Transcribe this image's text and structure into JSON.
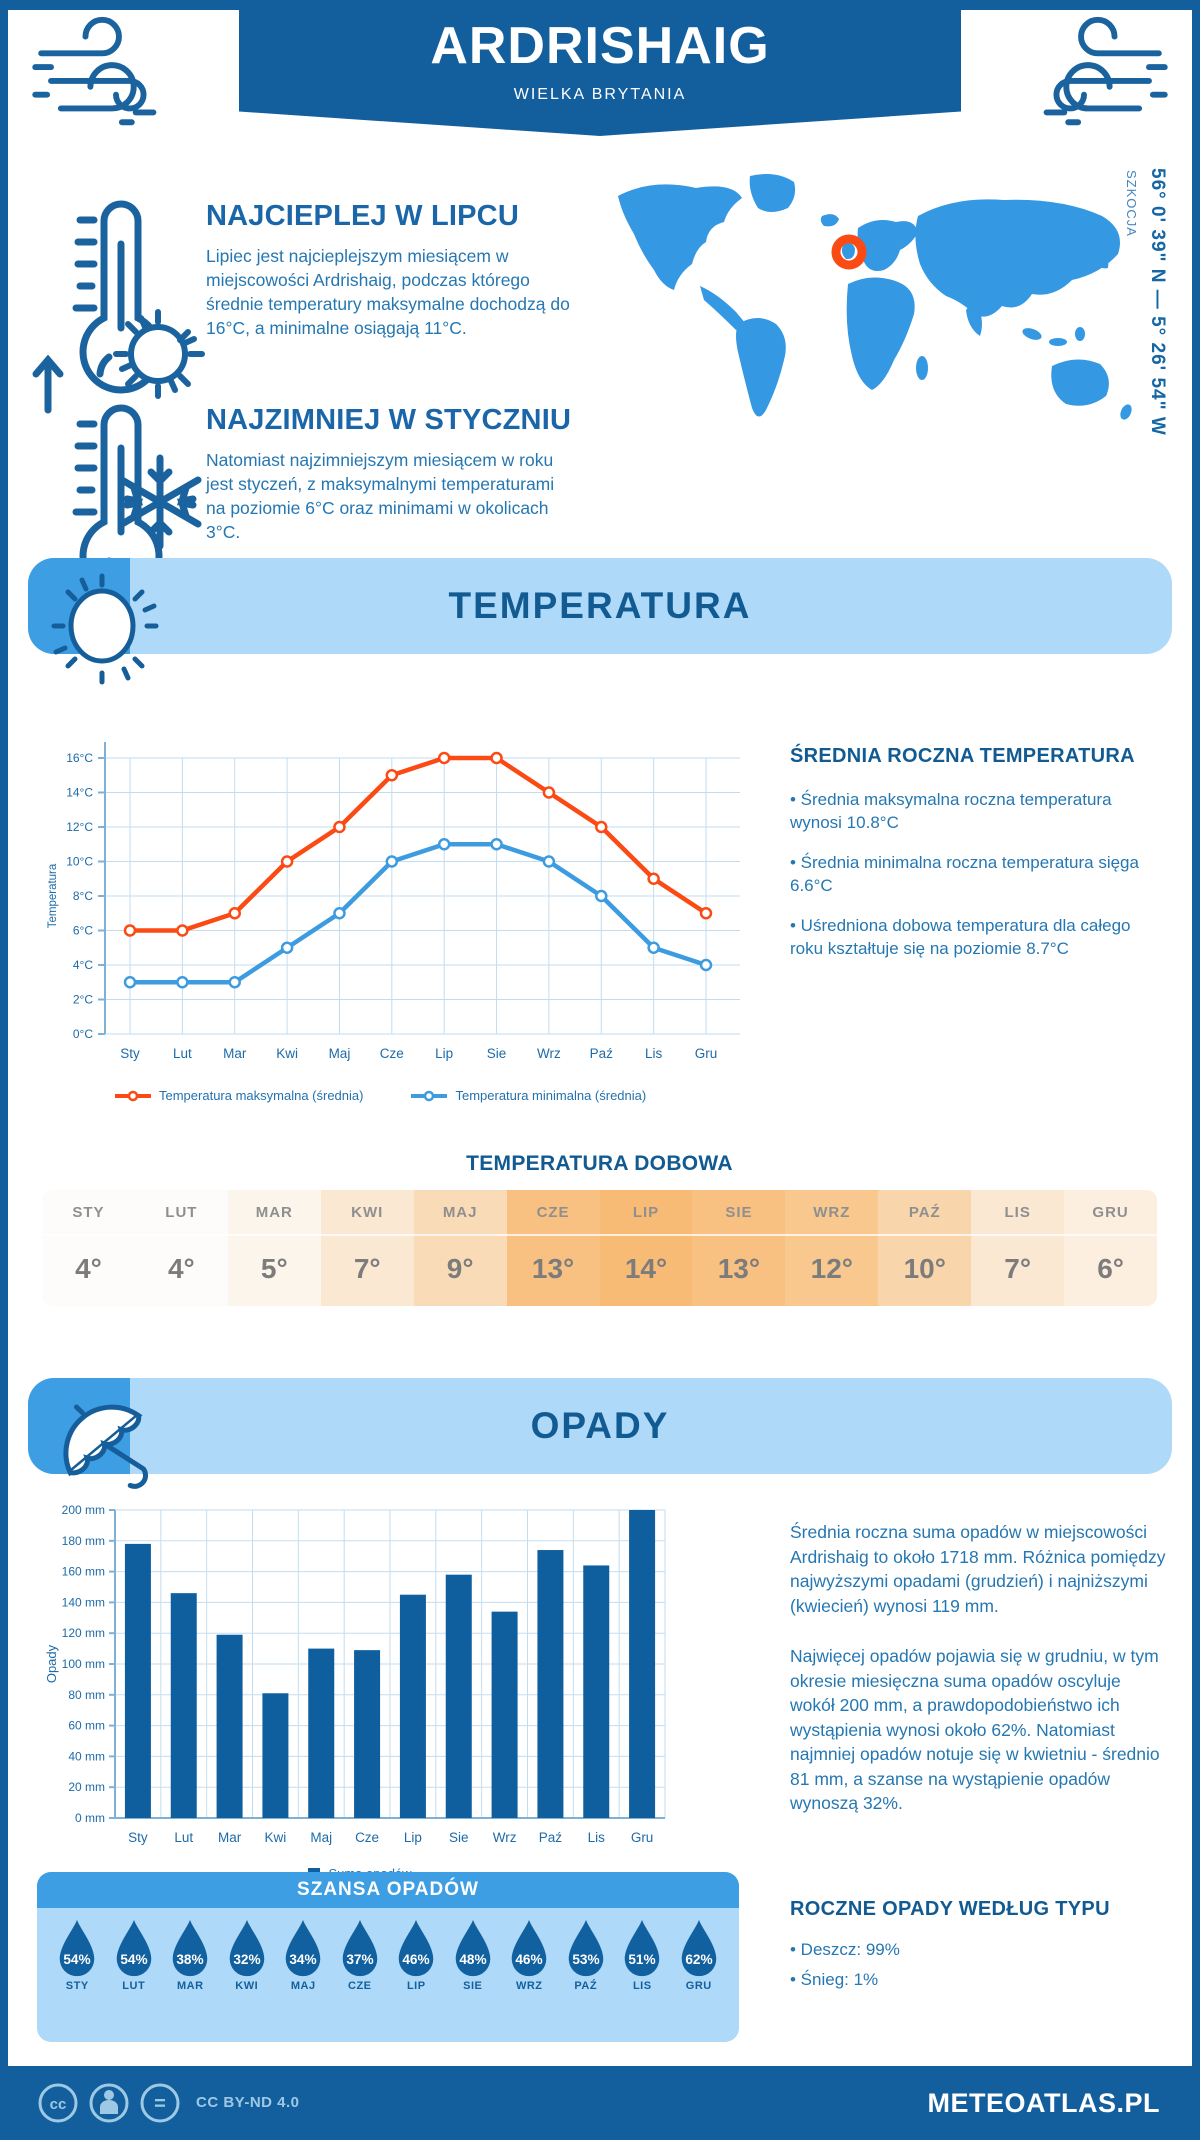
{
  "colors": {
    "primary": "#135f9e",
    "accent": "#3d9ee3",
    "light_panel": "#aed9f8",
    "orange": "#fb4a14",
    "line_max": "#fb4a14",
    "line_min": "#3d9be0",
    "bar": "#0f5f9f",
    "marker": "#fa4b14",
    "map": "#3598e3"
  },
  "header": {
    "title": "ARDRISHAIG",
    "subtitle": "WIELKA BRYTANIA"
  },
  "location": {
    "coordinates": "56° 0' 39\" N — 5° 26' 54\" W",
    "region": "SZKOCJA"
  },
  "highlights": {
    "warm": {
      "title": "NAJCIEPLEJ W LIPCU",
      "text": "Lipiec jest najcieplejszym miesiącem w miejscowości Ardrishaig, podczas którego średnie temperatury maksymalne dochodzą do 16°C, a minimalne osiągają 11°C."
    },
    "cold": {
      "title": "NAJZIMNIEJ W STYCZNIU",
      "text": "Natomiast najzimniejszym miesiącem w roku jest styczeń, z maksymalnymi temperaturami na poziomie 6°C oraz minimami w okolicach 3°C."
    }
  },
  "temperature": {
    "section_title": "TEMPERATURA",
    "annual_heading": "ŚREDNIA ROCZNA TEMPERATURA",
    "annual_bullets": [
      "• Średnia maksymalna roczna temperatura wynosi 10.8°C",
      "• Średnia minimalna roczna temperatura sięga 6.6°C",
      "• Uśredniona dobowa temperatura dla całego roku kształtuje się na poziomie 8.7°C"
    ],
    "daily_heading": "TEMPERATURA DOBOWA",
    "daily": {
      "months": [
        "STY",
        "LUT",
        "MAR",
        "KWI",
        "MAJ",
        "CZE",
        "LIP",
        "SIE",
        "WRZ",
        "PAŹ",
        "LIS",
        "GRU"
      ],
      "values": [
        "4°",
        "4°",
        "5°",
        "7°",
        "9°",
        "13°",
        "14°",
        "13°",
        "12°",
        "10°",
        "7°",
        "6°"
      ],
      "cell_colors": [
        "#fdfcfa",
        "#fdfcfa",
        "#fcf5ec",
        "#fbe8d2",
        "#fadbb8",
        "#f8c182",
        "#f7bb75",
        "#f8c182",
        "#f8c88f",
        "#f9d5ab",
        "#fbe8d2",
        "#fcefdf"
      ]
    }
  },
  "precipitation": {
    "section_title": "OPADY",
    "paragraphs": [
      "Średnia roczna suma opadów w miejscowości Ardrishaig to około 1718 mm. Różnica pomiędzy najwyższymi opadami (grudzień) i najniższymi (kwiecień) wynosi 119 mm.",
      "Najwięcej opadów pojawia się w grudniu, w tym okresie miesięczna suma opadów oscyluje wokół 200 mm, a prawdopodobieństwo ich wystąpienia wynosi około 62%. Natomiast najmniej opadów notuje się w kwietniu - średnio 81 mm, a szanse na wystąpienie opadów wynoszą 32%."
    ],
    "chance": {
      "title": "SZANSA OPADÓW",
      "months": [
        "STY",
        "LUT",
        "MAR",
        "KWI",
        "MAJ",
        "CZE",
        "LIP",
        "SIE",
        "WRZ",
        "PAŹ",
        "LIS",
        "GRU"
      ],
      "values": [
        "54%",
        "54%",
        "38%",
        "32%",
        "34%",
        "37%",
        "46%",
        "48%",
        "46%",
        "53%",
        "51%",
        "62%"
      ]
    },
    "type_heading": "ROCZNE OPADY WEDŁUG TYPU",
    "type_bullets": [
      "• Deszcz: 99%",
      "• Śnieg: 1%"
    ]
  },
  "chart_data": [
    {
      "type": "line",
      "x": [
        "Sty",
        "Lut",
        "Mar",
        "Kwi",
        "Maj",
        "Cze",
        "Lip",
        "Sie",
        "Wrz",
        "Paź",
        "Lis",
        "Gru"
      ],
      "ylabel": "Temperatura",
      "ylim": [
        0,
        16
      ],
      "ytick_step": 2,
      "ytick_suffix": "°C",
      "grid": true,
      "legend_position": "bottom",
      "series": [
        {
          "name": "Temperatura maksymalna (średnia)",
          "color": "#fb4a14",
          "values": [
            6,
            6,
            7,
            10,
            12,
            15,
            16,
            16,
            14,
            12,
            9,
            7
          ]
        },
        {
          "name": "Temperatura minimalna (średnia)",
          "color": "#3d9be0",
          "values": [
            3,
            3,
            3,
            5,
            7,
            10,
            11,
            11,
            10,
            8,
            5,
            4
          ]
        }
      ]
    },
    {
      "type": "bar",
      "categories": [
        "Sty",
        "Lut",
        "Mar",
        "Kwi",
        "Maj",
        "Cze",
        "Lip",
        "Sie",
        "Wrz",
        "Paź",
        "Lis",
        "Gru"
      ],
      "values": [
        178,
        146,
        119,
        81,
        110,
        109,
        145,
        158,
        134,
        174,
        164,
        200
      ],
      "legend": "Suma opadów",
      "ylabel": "Opady",
      "ylim": [
        0,
        200
      ],
      "ytick_step": 20,
      "ytick_suffix": " mm",
      "grid": true,
      "bar_color": "#0f5f9f"
    }
  ],
  "footer": {
    "license": "CC BY-ND 4.0",
    "brand": "METEOATLAS.PL"
  }
}
